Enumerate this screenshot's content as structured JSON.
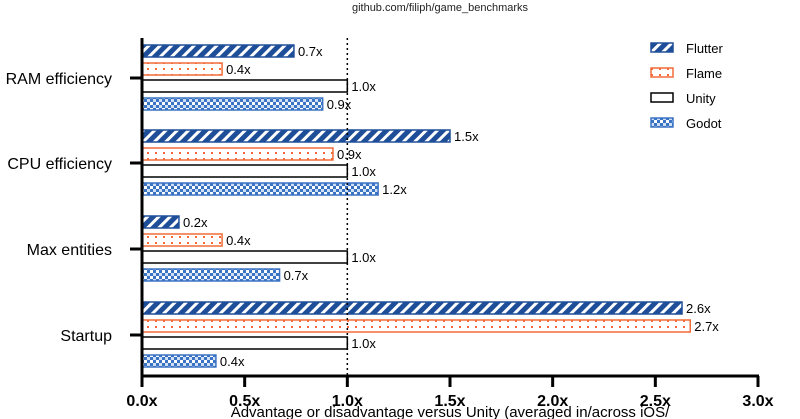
{
  "chart_data": {
    "type": "bar",
    "orientation": "horizontal",
    "title": "github.com/filiph/game_benchmarks",
    "xlabel": "Advantage or disadvantage versus Unity (averaged in/across iOS/",
    "ylabel": "",
    "xlim": [
      0,
      3.0
    ],
    "x_ticks": [
      "0.0x",
      "0.5x",
      "1.0x",
      "1.5x",
      "2.0x",
      "2.5x",
      "3.0x"
    ],
    "reference_line": 1.0,
    "grid": false,
    "legend_position": "top-right",
    "categories": [
      "RAM efficiency",
      "CPU efficiency",
      "Max entities",
      "Startup"
    ],
    "series": [
      {
        "name": "Flutter",
        "color": "#1f4e99",
        "pattern": "diagonal-stripes",
        "values": [
          0.74,
          1.5,
          0.18,
          2.63
        ],
        "labels": [
          "0.7x",
          "1.5x",
          "0.2x",
          "2.6x"
        ]
      },
      {
        "name": "Flame",
        "color": "#f26b38",
        "pattern": "dots",
        "values": [
          0.39,
          0.93,
          0.39,
          2.67
        ],
        "labels": [
          "0.4x",
          "0.9x",
          "0.4x",
          "2.7x"
        ]
      },
      {
        "name": "Unity",
        "color": "#000000",
        "pattern": "empty",
        "values": [
          1.0,
          1.0,
          1.0,
          1.0
        ],
        "labels": [
          "1.0x",
          "1.0x",
          "1.0x",
          "1.0x"
        ]
      },
      {
        "name": "Godot",
        "color": "#3b73c4",
        "pattern": "checker",
        "values": [
          0.88,
          1.15,
          0.67,
          0.36
        ],
        "labels": [
          "0.9x",
          "1.2x",
          "0.7x",
          "0.4x"
        ]
      }
    ]
  }
}
